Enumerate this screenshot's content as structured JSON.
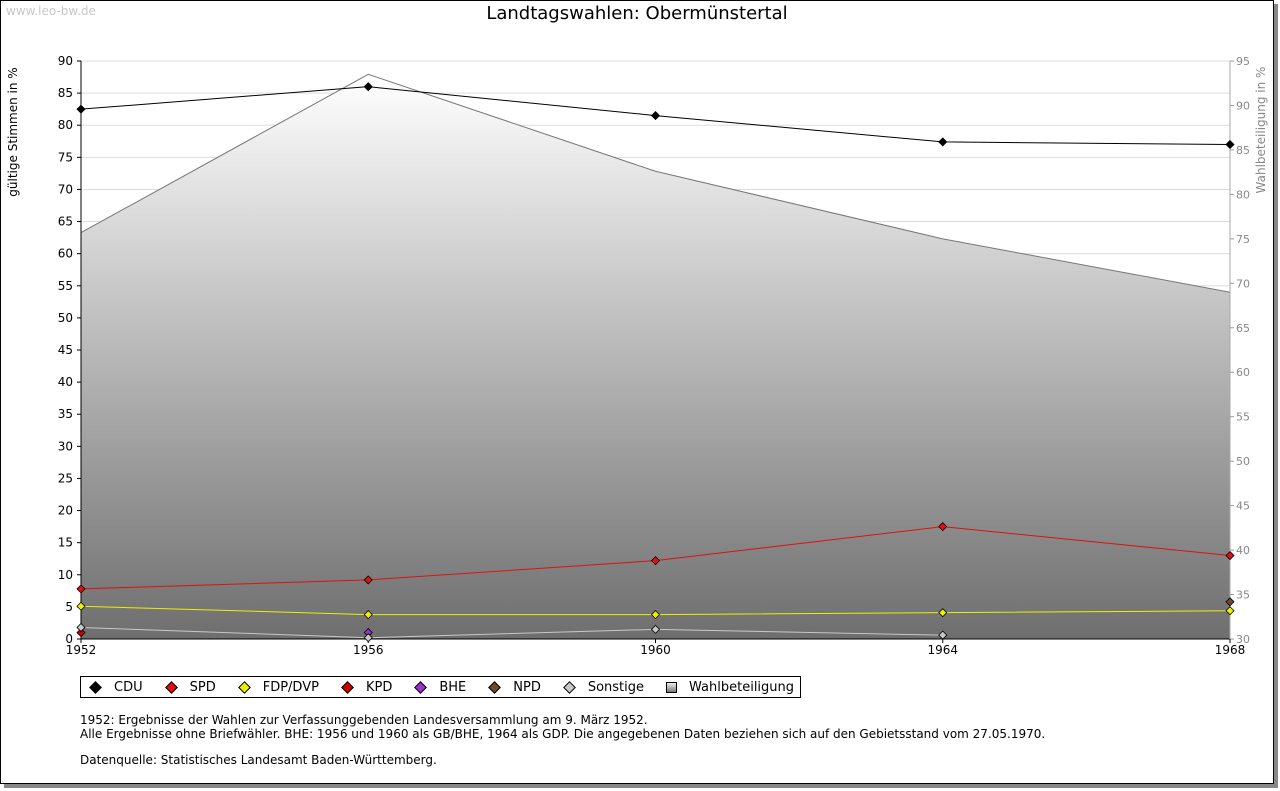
{
  "watermark": "www.leo-bw.de",
  "chart_data": {
    "type": "line",
    "title": "Landtagswahlen: Obermünstertal",
    "ylabel": "gültige Stimmen in %",
    "y2label": "Wahlbeteiligung in %",
    "categories": [
      "1952",
      "1956",
      "1960",
      "1964",
      "1968"
    ],
    "ylim": [
      0,
      90
    ],
    "y2lim": [
      30,
      95
    ],
    "yticks": [
      "0",
      "5",
      "10",
      "15",
      "20",
      "25",
      "30",
      "35",
      "40",
      "45",
      "50",
      "55",
      "60",
      "65",
      "70",
      "75",
      "80",
      "85",
      "90"
    ],
    "y2ticks": [
      "30",
      "35",
      "40",
      "45",
      "50",
      "55",
      "60",
      "65",
      "70",
      "75",
      "80",
      "85",
      "90",
      "95"
    ],
    "grid": true,
    "series": [
      {
        "name": "CDU",
        "color": "#000000",
        "values": [
          82.5,
          86.0,
          81.5,
          77.4,
          77.0
        ]
      },
      {
        "name": "SPD",
        "color": "#dd1111",
        "values": [
          7.8,
          9.2,
          12.2,
          17.5,
          13.0
        ]
      },
      {
        "name": "FDP/DVP",
        "color": "#eeee00",
        "values": [
          5.1,
          3.8,
          3.8,
          4.1,
          4.4
        ]
      },
      {
        "name": "KPD",
        "color": "#cc0000",
        "values": [
          1.0,
          null,
          null,
          null,
          null
        ]
      },
      {
        "name": "BHE",
        "color": "#9933cc",
        "values": [
          null,
          1.0,
          null,
          null,
          null
        ]
      },
      {
        "name": "NPD",
        "color": "#6b4a2e",
        "values": [
          null,
          null,
          null,
          null,
          5.8
        ]
      },
      {
        "name": "Sonstige",
        "color": "#c8c8c8",
        "values": [
          1.8,
          0.2,
          1.5,
          0.6,
          null
        ]
      }
    ],
    "area": {
      "name": "Wahlbeteiligung",
      "values": [
        75.7,
        93.5,
        82.6,
        75.0,
        69.0
      ]
    }
  },
  "legend": [
    {
      "label": "CDU",
      "color": "#000000"
    },
    {
      "label": "SPD",
      "color": "#dd1111"
    },
    {
      "label": "FDP/DVP",
      "color": "#eeee00"
    },
    {
      "label": "KPD",
      "color": "#cc0000"
    },
    {
      "label": "BHE",
      "color": "#9933cc"
    },
    {
      "label": "NPD",
      "color": "#6b4a2e"
    },
    {
      "label": "Sonstige",
      "color": "#c8c8c8"
    },
    {
      "label": "Wahlbeteiligung",
      "color": "#aaaaaa"
    }
  ],
  "notes": {
    "line1": "1952: Ergebnisse der Wahlen zur Verfassunggebenden Landesversammlung am 9. März 1952.",
    "line2": "Alle Ergebnisse ohne Briefwähler. BHE: 1956 und 1960 als GB/BHE, 1964 als GDP. Die angegebenen Daten beziehen sich auf den Gebietsstand vom 27.05.1970.",
    "source": "Datenquelle: Statistisches Landesamt Baden-Württemberg."
  }
}
